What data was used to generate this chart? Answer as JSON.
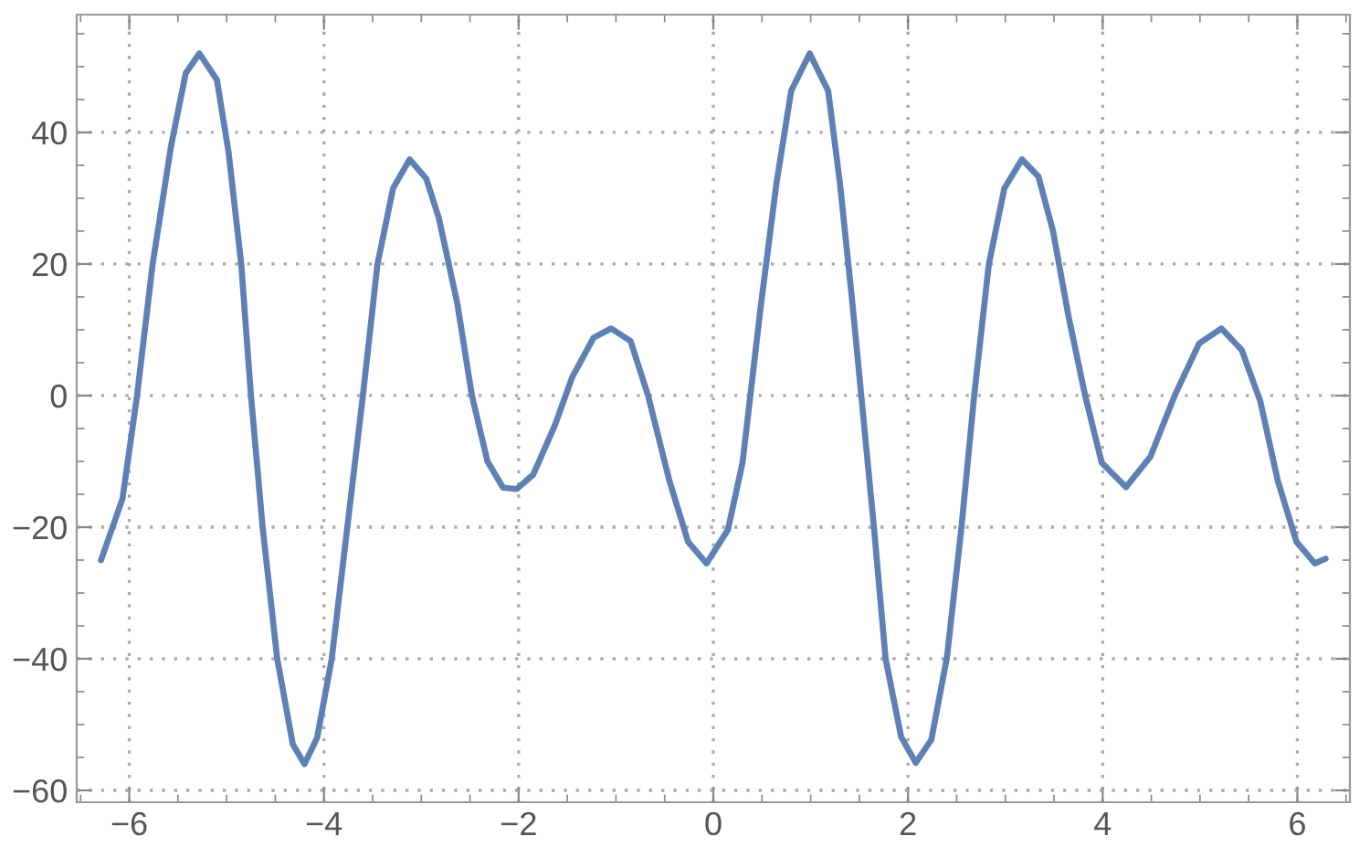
{
  "chart_data": {
    "type": "line",
    "xlim": [
      -6.54,
      6.54
    ],
    "ylim": [
      -61.8,
      57.9
    ],
    "xticks": [
      -6,
      -4,
      -2,
      0,
      2,
      4,
      6
    ],
    "yticks": [
      -60,
      -40,
      -20,
      0,
      20,
      40
    ],
    "grid": true,
    "line_style": "solid",
    "series": [
      {
        "color": "#5e81b5",
        "x": [
          -6.29,
          -6.07,
          -5.92,
          -5.76,
          -5.57,
          -5.42,
          -5.28,
          -5.1,
          -4.98,
          -4.85,
          -4.75,
          -4.63,
          -4.48,
          -4.32,
          -4.2,
          -4.07,
          -3.92,
          -3.76,
          -3.6,
          -3.45,
          -3.29,
          -3.12,
          -2.95,
          -2.82,
          -2.63,
          -2.48,
          -2.32,
          -2.16,
          -2.02,
          -1.85,
          -1.63,
          -1.45,
          -1.23,
          -1.05,
          -0.85,
          -0.67,
          -0.45,
          -0.26,
          -0.07,
          0.15,
          0.3,
          0.49,
          0.65,
          0.8,
          0.99,
          1.18,
          1.3,
          1.43,
          1.52,
          1.65,
          1.77,
          1.93,
          2.08,
          2.24,
          2.4,
          2.55,
          2.68,
          2.83,
          2.99,
          3.17,
          3.34,
          3.49,
          3.65,
          3.82,
          3.99,
          4.24,
          4.49,
          4.74,
          4.99,
          5.22,
          5.43,
          5.62,
          5.8,
          5.99,
          6.18,
          6.29
        ],
        "values": [
          -25,
          -15.7,
          0,
          20,
          38,
          49,
          52,
          48,
          37,
          20,
          0,
          -20,
          -40,
          -53,
          -56,
          -52,
          -40,
          -20,
          0,
          20,
          31.5,
          35.9,
          33,
          27,
          14,
          0,
          -10,
          -14,
          -14.2,
          -12,
          -4.6,
          2.8,
          8.8,
          10.2,
          8.3,
          0,
          -13,
          -22.2,
          -25.5,
          -20.4,
          -10.2,
          13.9,
          32.4,
          46.3,
          52,
          46.3,
          32.4,
          13.9,
          0,
          -20,
          -40,
          -51.9,
          -55.8,
          -52.3,
          -39.8,
          -19.9,
          0,
          19.9,
          31.5,
          35.9,
          33.3,
          25,
          12,
          0,
          -10.2,
          -13.9,
          -9.3,
          0,
          7.9,
          10.2,
          6.9,
          -0.9,
          -13,
          -22.2,
          -25.5,
          -24.8
        ]
      }
    ]
  }
}
